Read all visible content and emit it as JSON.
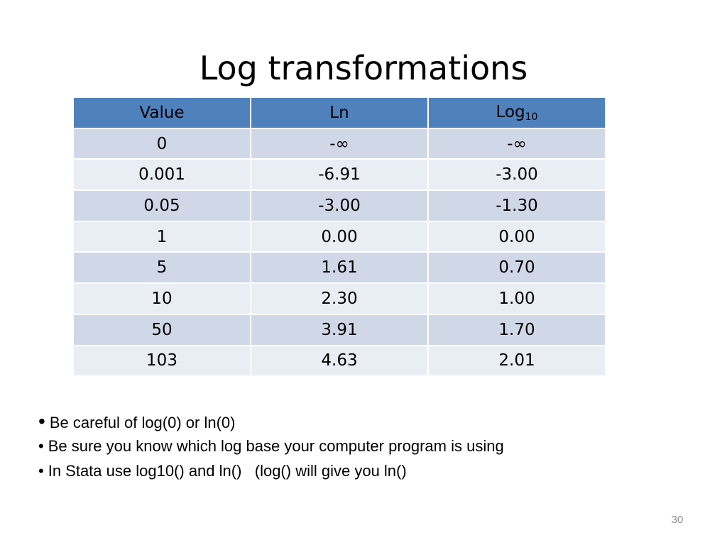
{
  "slide": {
    "title": "Log transformations",
    "page_number": "30"
  },
  "table": {
    "headers": {
      "value": "Value",
      "ln": "Ln",
      "log_base": "Log",
      "log_sub": "10"
    },
    "rows": [
      {
        "value": "0",
        "ln": "-∞",
        "log10": "-∞"
      },
      {
        "value": "0.001",
        "ln": "-6.91",
        "log10": "-3.00"
      },
      {
        "value": "0.05",
        "ln": "-3.00",
        "log10": "-1.30"
      },
      {
        "value": "1",
        "ln": "0.00",
        "log10": "0.00"
      },
      {
        "value": "5",
        "ln": "1.61",
        "log10": "0.70"
      },
      {
        "value": "10",
        "ln": "2.30",
        "log10": "1.00"
      },
      {
        "value": "50",
        "ln": "3.91",
        "log10": "1.70"
      },
      {
        "value": "103",
        "ln": "4.63",
        "log10": "2.01"
      }
    ]
  },
  "bullets": {
    "bullet_char": "•",
    "items": [
      "Be careful of log(0) or ln(0)",
      "Be sure you know which log base your computer program is using",
      "In Stata use log10() and ln()   (log() will give you ln()"
    ]
  },
  "colors": {
    "header_bg": "#4f81bd",
    "row_odd_bg": "#d0d8e8",
    "row_even_bg": "#e9edf4",
    "page_number": "#8c8c8c"
  }
}
